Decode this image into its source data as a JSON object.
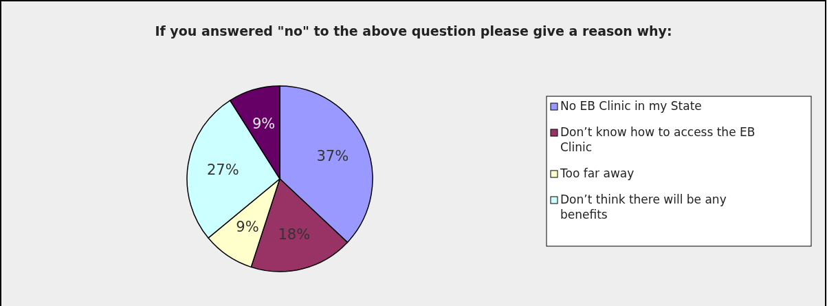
{
  "chart_data": {
    "type": "pie",
    "title": "If you answered \"no\" to the above question please give a reason why:",
    "categories": [
      "No EB Clinic in my State",
      "Don’t know how to access the EB Clinic",
      "Too far away",
      "Don’t think there will be any benefits",
      null
    ],
    "values": [
      37,
      18,
      9,
      27,
      9
    ],
    "colors": [
      "#9999ff",
      "#993366",
      "#ffffcc",
      "#ccffff",
      "#660066"
    ],
    "value_labels": [
      "37%",
      "18%",
      "9%",
      "27%",
      "9%"
    ],
    "legend": "right"
  }
}
